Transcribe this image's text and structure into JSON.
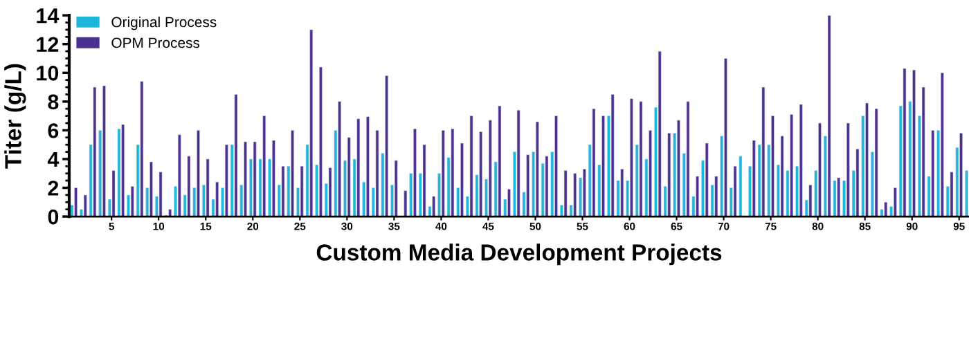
{
  "chart_data": {
    "type": "bar",
    "xlabel": "Custom Media Development Projects",
    "ylabel": "Titer (g/L)",
    "categories": [
      null,
      null,
      null,
      null,
      "5",
      null,
      null,
      null,
      null,
      "10",
      null,
      null,
      null,
      null,
      "15",
      null,
      null,
      null,
      null,
      "20",
      null,
      null,
      null,
      null,
      "25",
      null,
      null,
      null,
      null,
      "30",
      null,
      null,
      null,
      null,
      "35",
      null,
      null,
      null,
      null,
      "40",
      null,
      null,
      null,
      null,
      "45",
      null,
      null,
      null,
      null,
      "50",
      null,
      null,
      null,
      null,
      "55",
      null,
      null,
      null,
      null,
      "60",
      null,
      null,
      null,
      null,
      "65",
      null,
      null,
      null,
      null,
      "70",
      null,
      null,
      null,
      null,
      "75",
      null,
      null,
      null,
      null,
      "80",
      null,
      null,
      null,
      null,
      "85",
      null,
      null,
      null,
      null,
      "90",
      null,
      null,
      null,
      null,
      "95",
      null
    ],
    "series": [
      {
        "name": "Original Process",
        "color": "#1bb8da",
        "values": [
          0.8,
          0.5,
          5.0,
          6.0,
          1.2,
          6.1,
          1.5,
          5.0,
          2.0,
          1.4,
          0.1,
          2.1,
          1.5,
          2.0,
          2.2,
          1.2,
          2.0,
          5.0,
          2.2,
          4.0,
          4.0,
          4.0,
          2.2,
          3.5,
          2.0,
          5.0,
          3.6,
          2.3,
          6.0,
          3.9,
          4.0,
          2.4,
          2.0,
          4.4,
          2.2,
          null,
          3.0,
          3.0,
          0.7,
          3.0,
          4.1,
          2.0,
          1.4,
          2.9,
          2.6,
          3.8,
          1.2,
          4.5,
          1.7,
          4.5,
          3.7,
          4.5,
          0.8,
          0.8,
          2.7,
          5.0,
          3.6,
          7.0,
          2.5,
          2.5,
          5.0,
          4.0,
          7.6,
          2.1,
          5.8,
          4.4,
          1.4,
          3.9,
          2.2,
          5.6,
          2.0,
          4.2,
          3.5,
          5.0,
          5.0,
          3.6,
          3.2,
          3.5,
          1.15,
          3.2,
          5.6,
          2.5,
          2.5,
          3.2,
          7.0,
          4.5,
          0.5,
          0.7,
          7.7,
          8.0,
          7.0,
          2.8,
          6.0,
          2.1,
          4.8,
          3.2
        ]
      },
      {
        "name": "OPM Process",
        "color": "#4b318f",
        "values": [
          2.0,
          1.5,
          9.0,
          9.1,
          3.2,
          6.4,
          2.1,
          9.4,
          3.8,
          3.1,
          0.5,
          5.7,
          4.2,
          6.0,
          4.0,
          2.4,
          5.0,
          8.5,
          5.2,
          5.2,
          7.0,
          5.3,
          3.5,
          6.0,
          3.5,
          13.0,
          10.4,
          3.4,
          8.0,
          5.5,
          6.8,
          6.95,
          6.0,
          9.8,
          3.9,
          1.8,
          6.1,
          5.0,
          1.4,
          6.0,
          6.1,
          5.1,
          7.0,
          5.9,
          6.7,
          7.7,
          1.9,
          7.4,
          4.3,
          6.6,
          4.2,
          7.0,
          3.2,
          3.0,
          3.3,
          7.5,
          7.0,
          8.5,
          3.3,
          8.2,
          8.0,
          6.0,
          11.5,
          5.8,
          6.7,
          8.0,
          2.8,
          5.1,
          2.8,
          11.0,
          3.5,
          null,
          5.3,
          9.0,
          7.0,
          5.6,
          7.1,
          7.8,
          2.2,
          6.5,
          14.0,
          2.7,
          6.5,
          4.7,
          7.9,
          7.5,
          1.0,
          2.0,
          10.3,
          10.2,
          9.0,
          6.0,
          10.0,
          3.1,
          5.8,
          null
        ]
      }
    ],
    "ylim": [
      0,
      14
    ],
    "yticks": [
      0,
      2,
      4,
      6,
      8,
      10,
      12,
      14
    ],
    "legend": "top left"
  }
}
